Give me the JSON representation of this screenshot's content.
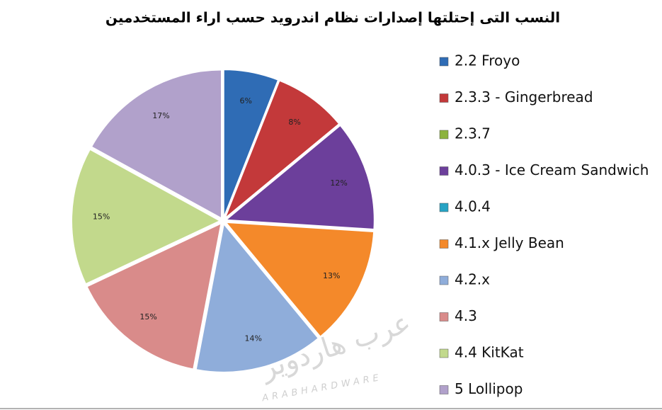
{
  "chart_data": {
    "type": "pie",
    "title": "النسب التى إحتلتها إصدارات نظام اندرويد حسب اراء المستخدمين",
    "categories": [
      "2.2 Froyo",
      "2.3.3 - Gingerbread",
      "2.3.7",
      "4.0.3 - Ice Cream Sandwich",
      "4.0.4",
      "4.1.x Jelly Bean",
      "4.2.x",
      "4.3",
      "4.4 KitKat",
      "5 Lollipop"
    ],
    "values": [
      6,
      8,
      0,
      12,
      0,
      13,
      14,
      15,
      15,
      17
    ],
    "value_labels": [
      "6%",
      "8%",
      null,
      "12%",
      null,
      "13%",
      "14%",
      "15%",
      "15%",
      "17%"
    ],
    "colors": [
      "#2f6cb5",
      "#c3393a",
      "#8cb33e",
      "#6c3f9b",
      "#27a3c4",
      "#f4892a",
      "#8fadda",
      "#d98b8a",
      "#c2d98c",
      "#b1a1cb"
    ],
    "legend": "right",
    "watermark": {
      "arabic": "عرب هاردوير",
      "latin": "ARABHARDWARE"
    }
  }
}
